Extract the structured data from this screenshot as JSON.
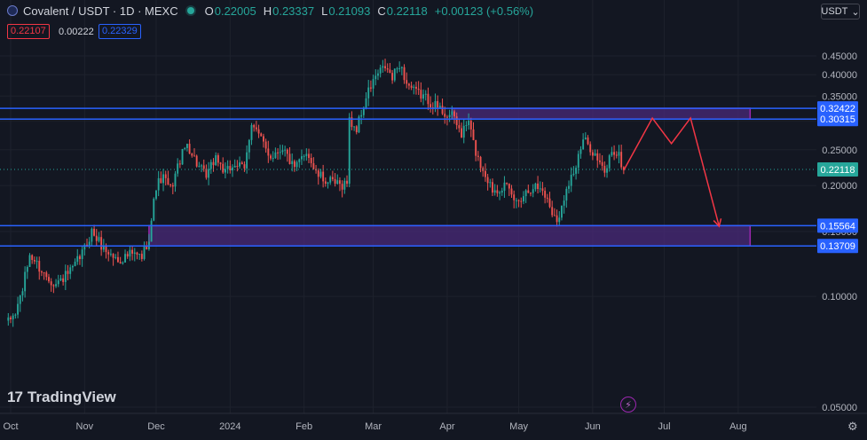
{
  "header": {
    "title": "Covalent / USDT · 1D · MEXC",
    "o_label": "O",
    "o_value": "0.22005",
    "h_label": "H",
    "h_value": "0.23337",
    "l_label": "L",
    "l_value": "0.21093",
    "c_label": "C",
    "c_value": "0.22118",
    "change": "+0.00123 (+0.56%)"
  },
  "quote": {
    "sell": "0.22107",
    "spread": "0.00222",
    "buy": "0.22329"
  },
  "currency": {
    "label": "USDT",
    "icon": "chevron-down-icon"
  },
  "brand": {
    "logo_text": "TradingView",
    "logo_mark": "17"
  },
  "icons": {
    "bolt": "lightning-icon",
    "settings": "gear-icon"
  },
  "colors": {
    "background": "#131722",
    "up": "#26a69a",
    "down": "#ef5350",
    "level": "#2962ff",
    "zone_fill": "#4a2a7a",
    "zone_border": "#9c27b0",
    "arrow": "#f23645"
  },
  "chart_data": {
    "type": "candlestick",
    "symbol": "Covalent / USDT",
    "interval": "1D",
    "exchange": "MEXC",
    "y_scale": "log",
    "ylim": [
      0.05,
      0.5
    ],
    "y_ticks": [
      "0.45000",
      "0.40000",
      "0.35000",
      "0.30000",
      "0.25000",
      "0.20000",
      "0.15000",
      "0.10000",
      "0.05000"
    ],
    "x_range": [
      "2023-10-01",
      "2024-08-07"
    ],
    "x_ticks": [
      {
        "label": "Oct",
        "date": "2023-10-01"
      },
      {
        "label": "Nov",
        "date": "2023-11-01"
      },
      {
        "label": "Dec",
        "date": "2023-12-01"
      },
      {
        "label": "2024",
        "date": "2024-01-01"
      },
      {
        "label": "Feb",
        "date": "2024-02-01"
      },
      {
        "label": "Mar",
        "date": "2024-03-01"
      },
      {
        "label": "Apr",
        "date": "2024-04-01"
      },
      {
        "label": "May",
        "date": "2024-05-01"
      },
      {
        "label": "Jun",
        "date": "2024-06-01"
      },
      {
        "label": "Jul",
        "date": "2024-07-01"
      },
      {
        "label": "Aug",
        "date": "2024-08-01"
      }
    ],
    "keypoints": [
      {
        "date": "2023-09-30",
        "price": 0.085
      },
      {
        "date": "2023-10-03",
        "price": 0.09
      },
      {
        "date": "2023-10-06",
        "price": 0.105
      },
      {
        "date": "2023-10-09",
        "price": 0.13
      },
      {
        "date": "2023-10-15",
        "price": 0.115
      },
      {
        "date": "2023-10-20",
        "price": 0.108
      },
      {
        "date": "2023-10-27",
        "price": 0.118
      },
      {
        "date": "2023-11-01",
        "price": 0.135
      },
      {
        "date": "2023-11-04",
        "price": 0.15
      },
      {
        "date": "2023-11-09",
        "price": 0.135
      },
      {
        "date": "2023-11-15",
        "price": 0.125
      },
      {
        "date": "2023-11-20",
        "price": 0.13
      },
      {
        "date": "2023-11-25",
        "price": 0.128
      },
      {
        "date": "2023-11-28",
        "price": 0.145
      },
      {
        "date": "2023-12-01",
        "price": 0.2
      },
      {
        "date": "2023-12-04",
        "price": 0.21
      },
      {
        "date": "2023-12-07",
        "price": 0.195
      },
      {
        "date": "2023-12-11",
        "price": 0.235
      },
      {
        "date": "2023-12-14",
        "price": 0.26
      },
      {
        "date": "2023-12-18",
        "price": 0.23
      },
      {
        "date": "2023-12-22",
        "price": 0.21
      },
      {
        "date": "2023-12-26",
        "price": 0.24
      },
      {
        "date": "2023-12-30",
        "price": 0.215
      },
      {
        "date": "2024-01-03",
        "price": 0.23
      },
      {
        "date": "2024-01-07",
        "price": 0.22
      },
      {
        "date": "2024-01-10",
        "price": 0.3
      },
      {
        "date": "2024-01-14",
        "price": 0.265
      },
      {
        "date": "2024-01-18",
        "price": 0.24
      },
      {
        "date": "2024-01-23",
        "price": 0.255
      },
      {
        "date": "2024-01-28",
        "price": 0.22
      },
      {
        "date": "2024-02-02",
        "price": 0.25
      },
      {
        "date": "2024-02-06",
        "price": 0.215
      },
      {
        "date": "2024-02-11",
        "price": 0.205
      },
      {
        "date": "2024-02-16",
        "price": 0.2
      },
      {
        "date": "2024-02-19",
        "price": 0.205
      },
      {
        "date": "2024-02-20",
        "price": 0.3
      },
      {
        "date": "2024-02-23",
        "price": 0.285
      },
      {
        "date": "2024-02-26",
        "price": 0.33
      },
      {
        "date": "2024-02-28",
        "price": 0.36
      },
      {
        "date": "2024-03-02",
        "price": 0.395
      },
      {
        "date": "2024-03-06",
        "price": 0.42
      },
      {
        "date": "2024-03-09",
        "price": 0.39
      },
      {
        "date": "2024-03-12",
        "price": 0.43
      },
      {
        "date": "2024-03-15",
        "price": 0.38
      },
      {
        "date": "2024-03-18",
        "price": 0.36
      },
      {
        "date": "2024-03-22",
        "price": 0.35
      },
      {
        "date": "2024-03-27",
        "price": 0.33
      },
      {
        "date": "2024-03-31",
        "price": 0.315
      },
      {
        "date": "2024-04-04",
        "price": 0.305
      },
      {
        "date": "2024-04-07",
        "price": 0.275
      },
      {
        "date": "2024-04-10",
        "price": 0.3
      },
      {
        "date": "2024-04-12",
        "price": 0.26
      },
      {
        "date": "2024-04-14",
        "price": 0.235
      },
      {
        "date": "2024-04-17",
        "price": 0.215
      },
      {
        "date": "2024-04-20",
        "price": 0.195
      },
      {
        "date": "2024-04-25",
        "price": 0.2
      },
      {
        "date": "2024-04-30",
        "price": 0.18
      },
      {
        "date": "2024-05-03",
        "price": 0.19
      },
      {
        "date": "2024-05-07",
        "price": 0.2
      },
      {
        "date": "2024-05-11",
        "price": 0.195
      },
      {
        "date": "2024-05-15",
        "price": 0.17
      },
      {
        "date": "2024-05-18",
        "price": 0.162
      },
      {
        "date": "2024-05-21",
        "price": 0.2
      },
      {
        "date": "2024-05-25",
        "price": 0.225
      },
      {
        "date": "2024-05-28",
        "price": 0.265
      },
      {
        "date": "2024-05-31",
        "price": 0.255
      },
      {
        "date": "2024-06-03",
        "price": 0.235
      },
      {
        "date": "2024-06-06",
        "price": 0.215
      },
      {
        "date": "2024-06-09",
        "price": 0.25
      },
      {
        "date": "2024-06-12",
        "price": 0.24
      },
      {
        "date": "2024-06-14",
        "price": 0.22
      }
    ],
    "levels": [
      {
        "label": "0.32422",
        "price": 0.32422
      },
      {
        "label": "0.30315",
        "price": 0.30315
      },
      {
        "label": "0.22118",
        "price": 0.22118,
        "current": true
      },
      {
        "label": "0.15564",
        "price": 0.15564
      },
      {
        "label": "0.13709",
        "price": 0.13709
      }
    ],
    "zones": [
      {
        "from_date": "2024-04-03",
        "to_date": "2024-08-06",
        "low": 0.30315,
        "high": 0.32422
      },
      {
        "from_date": "2023-11-28",
        "to_date": "2024-08-06",
        "low": 0.13709,
        "high": 0.15564
      }
    ],
    "projection": [
      {
        "date": "2024-06-14",
        "price": 0.22
      },
      {
        "date": "2024-06-26",
        "price": 0.305
      },
      {
        "date": "2024-07-04",
        "price": 0.26
      },
      {
        "date": "2024-07-12",
        "price": 0.305
      },
      {
        "date": "2024-07-24",
        "price": 0.155
      }
    ]
  }
}
